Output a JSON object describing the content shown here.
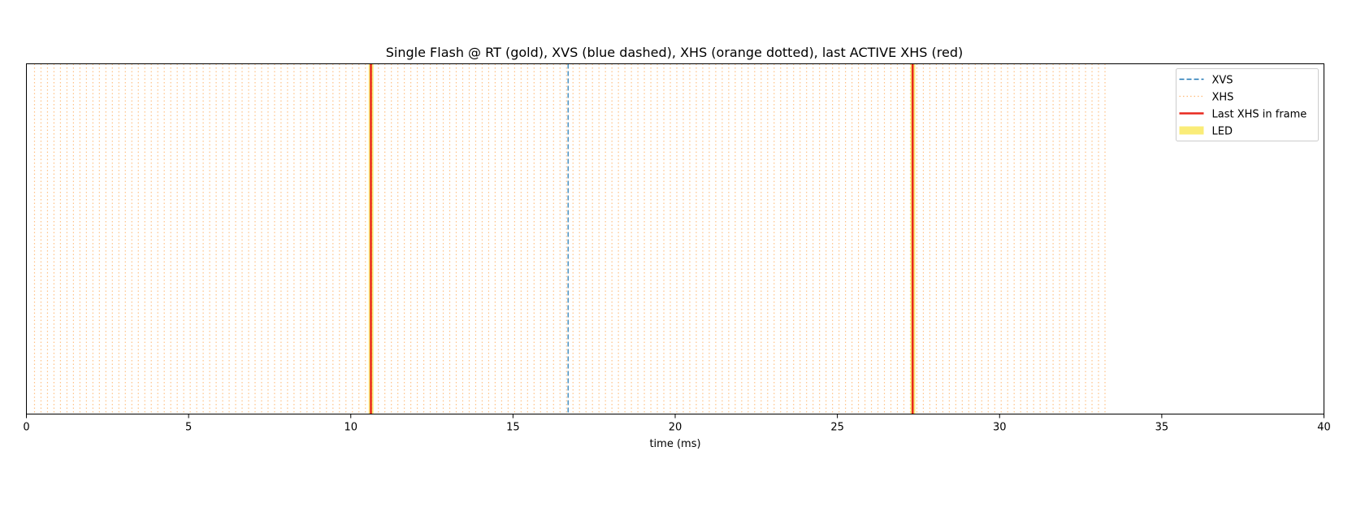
{
  "chart_data": {
    "type": "line",
    "title": "Single Flash @ RT (gold), XVS (blue dashed), XHS (orange dotted), last ACTIVE XHS (red)",
    "xlabel": "time (ms)",
    "ylabel": "",
    "xlim": [
      0,
      40
    ],
    "xticks": [
      0,
      5,
      10,
      15,
      20,
      25,
      30,
      35,
      40
    ],
    "yticks_visible": false,
    "grid": false,
    "legend_placement": "top-right",
    "series": [
      {
        "name": "XVS",
        "style": "dashed",
        "color": "#1f77b4",
        "x": [
          16.7
        ]
      },
      {
        "name": "XHS",
        "style": "dotted",
        "color": "#ffbb78",
        "x_start": 0.25,
        "x_end": 33.2,
        "x_step": 0.2
      },
      {
        "name": "Last XHS in frame",
        "style": "solid",
        "color": "#e8281e",
        "x": [
          10.62,
          27.32
        ]
      },
      {
        "name": "LED",
        "style": "span",
        "color": "#f7df1e",
        "x_ranges": [
          [
            10.55,
            10.7
          ],
          [
            27.25,
            27.4
          ]
        ]
      }
    ]
  }
}
